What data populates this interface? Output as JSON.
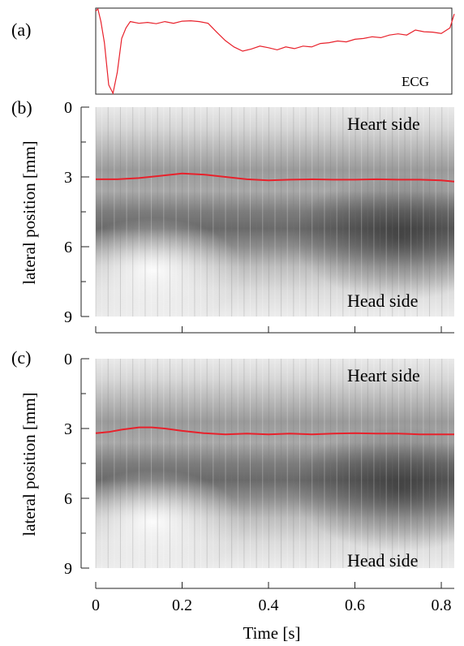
{
  "panels": {
    "a": {
      "label": "(a)",
      "ecg_label": "ECG"
    },
    "b": {
      "label": "(b)",
      "top_label": "Heart side",
      "bottom_label": "Head side"
    },
    "c": {
      "label": "(c)",
      "top_label": "Heart side",
      "bottom_label": "Head side"
    }
  },
  "colors": {
    "trace": "#e8212b",
    "axis": "#222222"
  },
  "chart_data": [
    {
      "type": "line",
      "id": "ecg",
      "series": [
        {
          "name": "ECG",
          "x": [
            0,
            0.005,
            0.012,
            0.02,
            0.03,
            0.04,
            0.05,
            0.06,
            0.07,
            0.08,
            0.1,
            0.12,
            0.14,
            0.16,
            0.18,
            0.2,
            0.22,
            0.24,
            0.26,
            0.28,
            0.3,
            0.32,
            0.34,
            0.36,
            0.38,
            0.4,
            0.42,
            0.44,
            0.46,
            0.48,
            0.5,
            0.52,
            0.54,
            0.56,
            0.58,
            0.6,
            0.62,
            0.64,
            0.66,
            0.68,
            0.7,
            0.72,
            0.74,
            0.76,
            0.78,
            0.8,
            0.82,
            0.83
          ],
          "values": [
            0.95,
            1.0,
            0.7,
            0.2,
            -0.8,
            -1.0,
            -0.5,
            0.3,
            0.55,
            0.7,
            0.66,
            0.68,
            0.65,
            0.7,
            0.66,
            0.71,
            0.72,
            0.7,
            0.66,
            0.45,
            0.25,
            0.1,
            0.0,
            0.05,
            0.12,
            0.08,
            0.03,
            0.1,
            0.06,
            0.12,
            0.1,
            0.18,
            0.2,
            0.24,
            0.22,
            0.28,
            0.3,
            0.34,
            0.32,
            0.38,
            0.41,
            0.38,
            0.5,
            0.46,
            0.45,
            0.42,
            0.55,
            0.88
          ]
        }
      ],
      "xlim": [
        0,
        0.83
      ]
    },
    {
      "type": "heatmap",
      "id": "b",
      "ylabel": "lateral position [mm]",
      "yticks": [
        "0",
        "3",
        "6",
        "9"
      ],
      "ylim": [
        0,
        9
      ],
      "xlim": [
        0,
        0.83
      ],
      "overlay_series": [
        {
          "x": [
            0,
            0.05,
            0.1,
            0.15,
            0.2,
            0.25,
            0.3,
            0.35,
            0.4,
            0.45,
            0.5,
            0.55,
            0.6,
            0.65,
            0.7,
            0.75,
            0.8,
            0.83
          ],
          "values": [
            3.1,
            3.1,
            3.05,
            2.95,
            2.85,
            2.9,
            3.0,
            3.1,
            3.15,
            3.12,
            3.1,
            3.12,
            3.12,
            3.1,
            3.12,
            3.12,
            3.15,
            3.2
          ]
        }
      ]
    },
    {
      "type": "heatmap",
      "id": "c",
      "ylabel": "lateral position [mm]",
      "yticks": [
        "0",
        "3",
        "6",
        "9"
      ],
      "xticks": [
        "0",
        "0.2",
        "0.4",
        "0.6",
        "0.8"
      ],
      "xlabel": "Time [s]",
      "ylim": [
        0,
        9
      ],
      "xlim": [
        0,
        0.83
      ],
      "overlay_series": [
        {
          "x": [
            0,
            0.03,
            0.06,
            0.1,
            0.13,
            0.16,
            0.2,
            0.25,
            0.3,
            0.35,
            0.4,
            0.45,
            0.5,
            0.55,
            0.6,
            0.65,
            0.7,
            0.75,
            0.8,
            0.83
          ],
          "values": [
            3.2,
            3.15,
            3.05,
            2.95,
            2.95,
            3.0,
            3.1,
            3.2,
            3.25,
            3.22,
            3.25,
            3.22,
            3.25,
            3.22,
            3.2,
            3.22,
            3.22,
            3.25,
            3.25,
            3.25
          ]
        }
      ]
    }
  ]
}
